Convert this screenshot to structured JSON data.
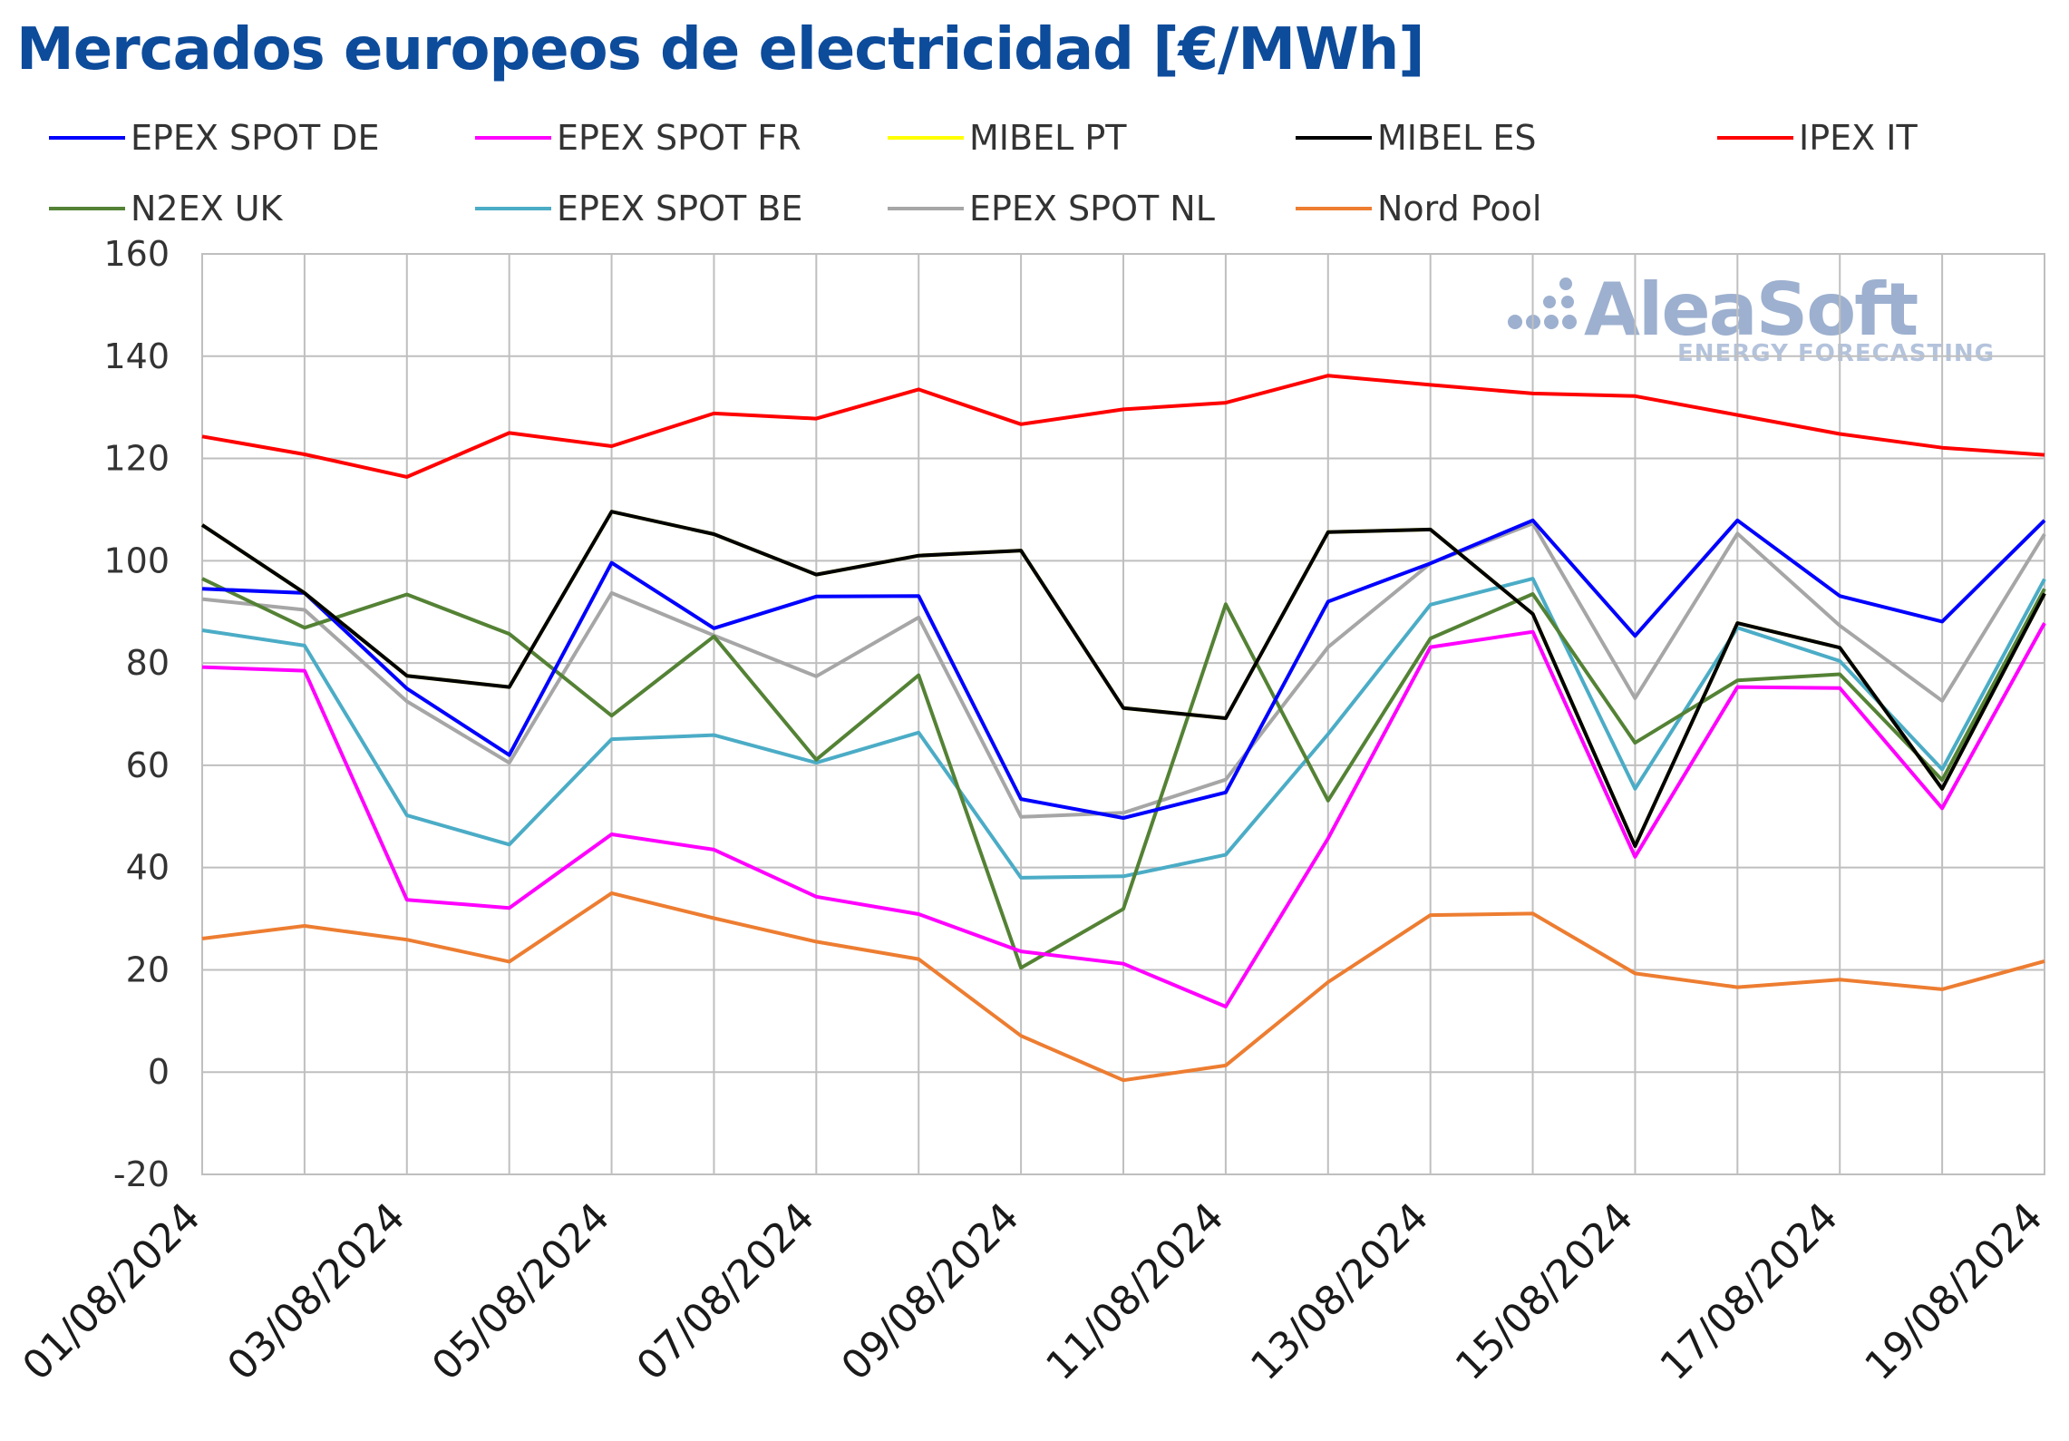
{
  "title": "Mercados europeos de electricidad [€/MWh]",
  "logo": {
    "name": "AleaSoft",
    "tagline": "ENERGY FORECASTING"
  },
  "chart_data": {
    "type": "line",
    "title": "Mercados europeos de electricidad [€/MWh]",
    "xlabel": "",
    "ylabel": "",
    "ylim": [
      -20,
      160
    ],
    "yticks": [
      -20,
      0,
      20,
      40,
      60,
      80,
      100,
      120,
      140,
      160
    ],
    "grid": true,
    "legend_position": "top",
    "x": [
      "01/08/2024",
      "02/08/2024",
      "03/08/2024",
      "04/08/2024",
      "05/08/2024",
      "06/08/2024",
      "07/08/2024",
      "08/08/2024",
      "09/08/2024",
      "10/08/2024",
      "11/08/2024",
      "12/08/2024",
      "13/08/2024",
      "14/08/2024",
      "15/08/2024",
      "16/08/2024",
      "17/08/2024",
      "18/08/2024",
      "19/08/2024"
    ],
    "xtick_labels": [
      "01/08/2024",
      "03/08/2024",
      "05/08/2024",
      "07/08/2024",
      "09/08/2024",
      "11/08/2024",
      "13/08/2024",
      "15/08/2024",
      "17/08/2024",
      "19/08/2024"
    ],
    "series": [
      {
        "name": "EPEX SPOT DE",
        "color": "#0000ff",
        "values": [
          94.5,
          93.7,
          75,
          62,
          99.6,
          86.8,
          93,
          93.1,
          53.4,
          49.7,
          54.7,
          92,
          99.5,
          107.9,
          85.3,
          107.9,
          93.1,
          88.1,
          107.9
        ]
      },
      {
        "name": "EPEX SPOT FR",
        "color": "#ff00ff",
        "values": [
          79.2,
          78.5,
          33.7,
          32.1,
          46.5,
          43.5,
          34.3,
          30.9,
          23.6,
          21.2,
          12.8,
          45.7,
          83.1,
          86.1,
          42.1,
          75.3,
          75.1,
          51.6,
          87.8
        ]
      },
      {
        "name": "MIBEL PT",
        "color": "#ffff00",
        "values": [
          107,
          93.7,
          77.5,
          75.3,
          109.6,
          105.2,
          97.3,
          101,
          102,
          71.2,
          69.2,
          105.6,
          106.1,
          89.6,
          44.2,
          87.8,
          83,
          55.4,
          93.6
        ]
      },
      {
        "name": "MIBEL ES",
        "color": "#000000",
        "values": [
          107,
          93.7,
          77.5,
          75.3,
          109.6,
          105.2,
          97.3,
          101,
          102,
          71.2,
          69.2,
          105.6,
          106.1,
          89.6,
          44.2,
          87.8,
          83,
          55.4,
          93.6
        ]
      },
      {
        "name": "IPEX IT",
        "color": "#ff0000",
        "values": [
          124.3,
          120.8,
          116.4,
          125,
          122.4,
          128.8,
          127.8,
          133.5,
          126.7,
          129.6,
          130.9,
          136.2,
          134.4,
          132.7,
          132.2,
          128.5,
          124.8,
          122.1,
          120.7
        ]
      },
      {
        "name": "N2EX UK",
        "color": "#548235",
        "values": [
          96.5,
          86.9,
          93.4,
          85.7,
          69.7,
          85.2,
          61.1,
          77.6,
          20.4,
          31.9,
          91.5,
          53.1,
          84.8,
          93.5,
          64.4,
          76.6,
          77.8,
          57.1,
          94.5
        ]
      },
      {
        "name": "EPEX SPOT BE",
        "color": "#4bacc6",
        "values": [
          86.4,
          83.4,
          50.2,
          44.5,
          65.1,
          65.9,
          60.5,
          66.4,
          38,
          38.3,
          42.5,
          66.1,
          91.4,
          96.5,
          55.4,
          86.9,
          80.4,
          59.2,
          96.4
        ]
      },
      {
        "name": "EPEX SPOT NL",
        "color": "#a6a6a6",
        "values": [
          92.5,
          90.4,
          72.5,
          60.5,
          93.7,
          85.4,
          77.4,
          88.9,
          49.9,
          50.7,
          57.2,
          83.1,
          99.5,
          107.3,
          73.1,
          105.3,
          87.3,
          72.6,
          105.2
        ]
      },
      {
        "name": "Nord Pool",
        "color": "#ed7d31",
        "values": [
          26.1,
          28.6,
          25.9,
          21.6,
          35,
          30.1,
          25.5,
          22.1,
          7.1,
          -1.6,
          1.3,
          17.6,
          30.7,
          31,
          19.3,
          16.6,
          18.1,
          16.2,
          21.7
        ]
      }
    ]
  }
}
